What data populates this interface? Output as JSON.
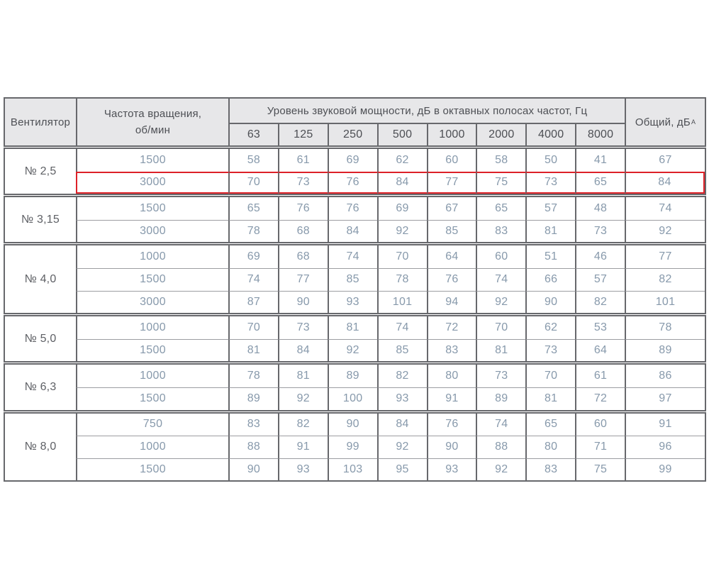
{
  "colors": {
    "highlight_red": "#dd2128",
    "header_bg": "#e7e7e9",
    "grid_border": "#67686c",
    "inner_line": "#9c9da1",
    "data_text": "#8799ab",
    "header_text": "#4d4f54"
  },
  "table": {
    "header": {
      "fan": "Вентилятор",
      "speed_line1": "Частота вращения,",
      "speed_line2": "об/мин",
      "group_title": "Уровень звуковой мощности, дБ в октавных полосах частот, Гц",
      "frequencies": [
        "63",
        "125",
        "250",
        "500",
        "1000",
        "2000",
        "4000",
        "8000"
      ],
      "total": "Общий, дБ",
      "total_sub": "А"
    },
    "groups": [
      {
        "fan": "№ 2,5",
        "rows": [
          {
            "rpm": "1500",
            "levels": [
              58,
              61,
              69,
              62,
              60,
              58,
              50,
              41
            ],
            "total": 67,
            "highlighted": false
          },
          {
            "rpm": "3000",
            "levels": [
              70,
              73,
              76,
              84,
              77,
              75,
              73,
              65
            ],
            "total": 84,
            "highlighted": true
          }
        ]
      },
      {
        "fan": "№ 3,15",
        "rows": [
          {
            "rpm": "1500",
            "levels": [
              65,
              76,
              76,
              69,
              67,
              65,
              57,
              48
            ],
            "total": 74,
            "highlighted": false
          },
          {
            "rpm": "3000",
            "levels": [
              78,
              68,
              84,
              92,
              85,
              83,
              81,
              73
            ],
            "total": 92,
            "highlighted": false
          }
        ]
      },
      {
        "fan": "№ 4,0",
        "rows": [
          {
            "rpm": "1000",
            "levels": [
              69,
              68,
              74,
              70,
              64,
              60,
              51,
              46
            ],
            "total": 77,
            "highlighted": false
          },
          {
            "rpm": "1500",
            "levels": [
              74,
              77,
              85,
              78,
              76,
              74,
              66,
              57
            ],
            "total": 82,
            "highlighted": false
          },
          {
            "rpm": "3000",
            "levels": [
              87,
              90,
              93,
              101,
              94,
              92,
              90,
              82
            ],
            "total": 101,
            "highlighted": false
          }
        ]
      },
      {
        "fan": "№ 5,0",
        "rows": [
          {
            "rpm": "1000",
            "levels": [
              70,
              73,
              81,
              74,
              72,
              70,
              62,
              53
            ],
            "total": 78,
            "highlighted": false
          },
          {
            "rpm": "1500",
            "levels": [
              81,
              84,
              92,
              85,
              83,
              81,
              73,
              64
            ],
            "total": 89,
            "highlighted": false
          }
        ]
      },
      {
        "fan": "№ 6,3",
        "rows": [
          {
            "rpm": "1000",
            "levels": [
              78,
              81,
              89,
              82,
              80,
              73,
              70,
              61
            ],
            "total": 86,
            "highlighted": false
          },
          {
            "rpm": "1500",
            "levels": [
              89,
              92,
              100,
              93,
              91,
              89,
              81,
              72
            ],
            "total": 97,
            "highlighted": false
          }
        ]
      },
      {
        "fan": "№ 8,0",
        "rows": [
          {
            "rpm": "750",
            "levels": [
              83,
              82,
              90,
              84,
              76,
              74,
              65,
              60
            ],
            "total": 91,
            "highlighted": false
          },
          {
            "rpm": "1000",
            "levels": [
              88,
              91,
              99,
              92,
              90,
              88,
              80,
              71
            ],
            "total": 96,
            "highlighted": false
          },
          {
            "rpm": "1500",
            "levels": [
              90,
              93,
              103,
              95,
              93,
              92,
              83,
              75
            ],
            "total": 99,
            "highlighted": false
          }
        ]
      }
    ]
  },
  "chart_data": {
    "type": "table",
    "title": "Уровень звуковой мощности, дБ в октавных полосах частот, Гц",
    "columns": [
      "Вентилятор",
      "Частота вращения, об/мин",
      "63",
      "125",
      "250",
      "500",
      "1000",
      "2000",
      "4000",
      "8000",
      "Общий, дБА"
    ],
    "rows": [
      [
        "№ 2,5",
        "1500",
        58,
        61,
        69,
        62,
        60,
        58,
        50,
        41,
        67
      ],
      [
        "№ 2,5",
        "3000",
        70,
        73,
        76,
        84,
        77,
        75,
        73,
        65,
        84
      ],
      [
        "№ 3,15",
        "1500",
        65,
        76,
        76,
        69,
        67,
        65,
        57,
        48,
        74
      ],
      [
        "№ 3,15",
        "3000",
        78,
        68,
        84,
        92,
        85,
        83,
        81,
        73,
        92
      ],
      [
        "№ 4,0",
        "1000",
        69,
        68,
        74,
        70,
        64,
        60,
        51,
        46,
        77
      ],
      [
        "№ 4,0",
        "1500",
        74,
        77,
        85,
        78,
        76,
        74,
        66,
        57,
        82
      ],
      [
        "№ 4,0",
        "3000",
        87,
        90,
        93,
        101,
        94,
        92,
        90,
        82,
        101
      ],
      [
        "№ 5,0",
        "1000",
        70,
        73,
        81,
        74,
        72,
        70,
        62,
        53,
        78
      ],
      [
        "№ 5,0",
        "1500",
        81,
        84,
        92,
        85,
        83,
        81,
        73,
        64,
        89
      ],
      [
        "№ 6,3",
        "1000",
        78,
        81,
        89,
        82,
        80,
        73,
        70,
        61,
        86
      ],
      [
        "№ 6,3",
        "1500",
        89,
        92,
        100,
        93,
        91,
        89,
        81,
        72,
        97
      ],
      [
        "№ 8,0",
        "750",
        83,
        82,
        90,
        84,
        76,
        74,
        65,
        60,
        91
      ],
      [
        "№ 8,0",
        "1000",
        88,
        91,
        99,
        92,
        90,
        88,
        80,
        71,
        96
      ],
      [
        "№ 8,0",
        "1500",
        90,
        93,
        103,
        95,
        93,
        92,
        83,
        75,
        99
      ]
    ],
    "highlighted_row_index": 1,
    "highlight_color": "#dd2128",
    "legend_position": "none",
    "grid": true
  }
}
